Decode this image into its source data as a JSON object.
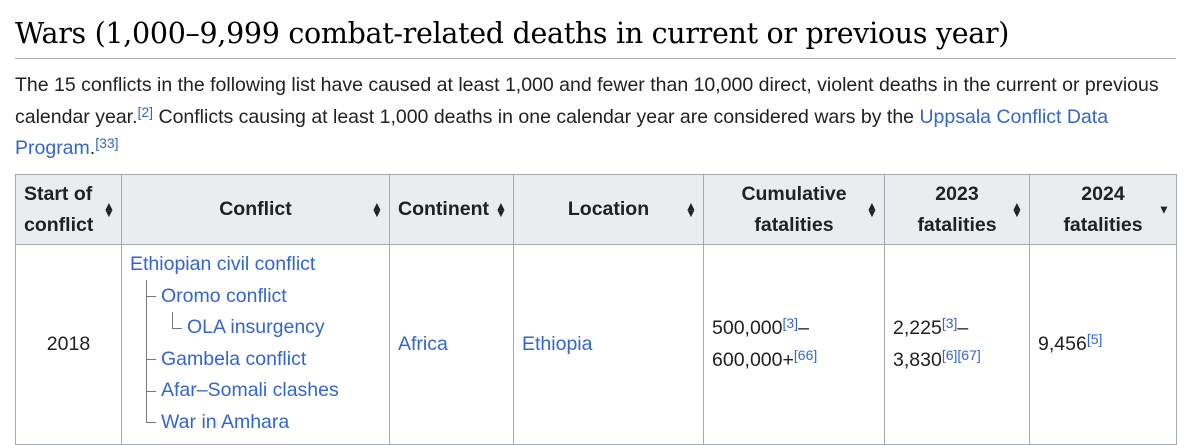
{
  "heading": "Wars (1,000–9,999 combat-related deaths in current or previous year)",
  "intro": {
    "text1": "The 15 conflicts in the following list have caused at least 1,000 and fewer than 10,000 direct, violent deaths in the current or previous calendar year.",
    "ref1": "[2]",
    "text2": " Conflicts causing at least 1,000 deaths in one calendar year are considered wars by the ",
    "link": "Uppsala Conflict Data Program",
    "text3": ".",
    "ref2": "[33]"
  },
  "table": {
    "headers": {
      "start_line1": "Start of",
      "start_line2": "conflict",
      "conflict": "Conflict",
      "continent": "Continent",
      "location": "Location",
      "cumulative_line1": "Cumulative",
      "cumulative_line2": "fatalities",
      "y2023_line1": "2023",
      "y2023_line2": "fatalities",
      "y2024_line1": "2024",
      "y2024_line2": "fatalities"
    },
    "sort_icons": {
      "both": "sort-both-icon",
      "desc": "sort-descending-icon"
    },
    "row": {
      "start": "2018",
      "conflict_main": "Ethiopian civil conflict",
      "sub": [
        "Oromo conflict",
        "OLA insurgency",
        "Gambela conflict",
        "Afar–Somali clashes",
        "War in Amhara"
      ],
      "continent": "Africa",
      "location": "Ethiopia",
      "cumulative_a": "500,000",
      "cumulative_ref_a": "[3]",
      "cumulative_dash": "–",
      "cumulative_b": "600,000+",
      "cumulative_ref_b": "[66]",
      "f2023_a": "2,225",
      "f2023_ref_a": "[3]",
      "f2023_dash": "–",
      "f2023_b": "3,830",
      "f2023_ref_b1": "[6]",
      "f2023_ref_b2": "[67]",
      "f2024": "9,456",
      "f2024_ref": "[5]"
    }
  }
}
